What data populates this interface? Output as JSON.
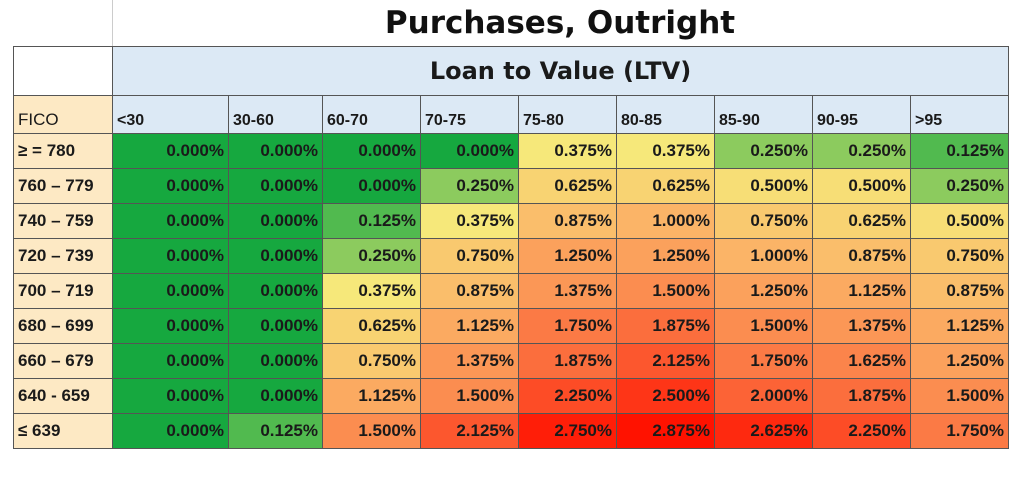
{
  "chart_data": {
    "type": "heatmap",
    "title": "Purchases, Outright",
    "column_group_label": "Loan to Value (LTV)",
    "row_header": "FICO",
    "columns": [
      "<30",
      "30-60",
      "60-70",
      "70-75",
      "75-80",
      "80-85",
      "85-90",
      "90-95",
      ">95"
    ],
    "rows": [
      "≥ = 780",
      "760 – 779",
      "740 – 759",
      "720 – 739",
      "700 – 719",
      "680 – 699",
      "660 – 679",
      "640 - 659",
      "≤ 639"
    ],
    "values": [
      [
        0,
        0,
        0,
        0,
        0.375,
        0.375,
        0.25,
        0.25,
        0.125
      ],
      [
        0,
        0,
        0,
        0.25,
        0.625,
        0.625,
        0.5,
        0.5,
        0.25
      ],
      [
        0,
        0,
        0.125,
        0.375,
        0.875,
        1.0,
        0.75,
        0.625,
        0.5
      ],
      [
        0,
        0,
        0.25,
        0.75,
        1.25,
        1.25,
        1.0,
        0.875,
        0.75
      ],
      [
        0,
        0,
        0.375,
        0.875,
        1.375,
        1.5,
        1.25,
        1.125,
        0.875
      ],
      [
        0,
        0,
        0.625,
        1.125,
        1.75,
        1.875,
        1.5,
        1.375,
        1.125
      ],
      [
        0,
        0,
        0.75,
        1.375,
        1.875,
        2.125,
        1.75,
        1.625,
        1.25
      ],
      [
        0,
        0,
        1.125,
        1.5,
        2.25,
        2.5,
        2.0,
        1.875,
        1.5
      ],
      [
        0,
        0.125,
        1.5,
        2.125,
        2.75,
        2.875,
        2.625,
        2.25,
        1.75
      ]
    ],
    "unit": "%",
    "color_scale": {
      "low": "#16a83f",
      "mid": "#f6e87a",
      "high": "#ff1200"
    }
  }
}
